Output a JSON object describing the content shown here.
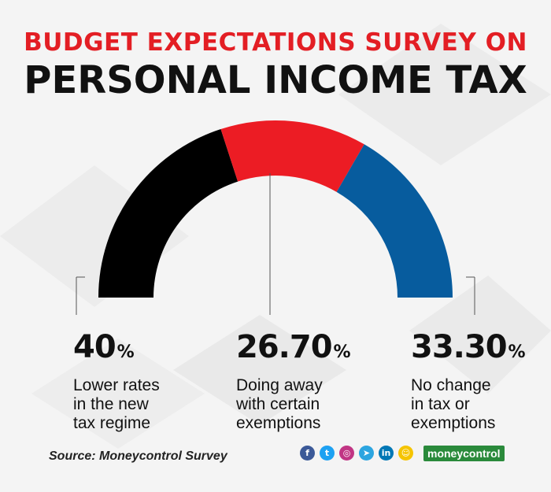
{
  "title_line1": "BUDGET EXPECTATIONS SURVEY ON",
  "title_line2": "PERSONAL INCOME TAX",
  "chart_data": {
    "type": "pie",
    "title": "BUDGET EXPECTATIONS SURVEY ON PERSONAL INCOME TAX",
    "categories": [
      "Lower rates in the new tax regime",
      "Doing away with certain exemptions",
      "No change in tax or exemptions"
    ],
    "values": [
      40,
      26.7,
      33.3
    ],
    "value_labels": [
      "40",
      "26.70",
      "33.30"
    ],
    "unit": "%",
    "colors": [
      "#000000",
      "#ec1c24",
      "#075c9e"
    ],
    "label_lines": [
      [
        "Lower rates",
        "in the new",
        "tax regime"
      ],
      [
        "Doing away",
        "with certain",
        "exemptions"
      ],
      [
        "No change",
        "in tax or",
        "exemptions"
      ]
    ],
    "style": "half-donut"
  },
  "source": "Source: Moneycontrol Survey",
  "social_icons": [
    {
      "name": "facebook-icon",
      "glyph": "f",
      "color": "#3b5998"
    },
    {
      "name": "twitter-icon",
      "glyph": "t",
      "color": "#1da1f2"
    },
    {
      "name": "instagram-icon",
      "glyph": "◎",
      "color": "#c13584"
    },
    {
      "name": "telegram-icon",
      "glyph": "➤",
      "color": "#2ca5e0"
    },
    {
      "name": "linkedin-icon",
      "glyph": "in",
      "color": "#0077b5"
    },
    {
      "name": "snapchat-icon",
      "glyph": "☺",
      "color": "#f5c400"
    }
  ],
  "brand": "moneycontrol"
}
